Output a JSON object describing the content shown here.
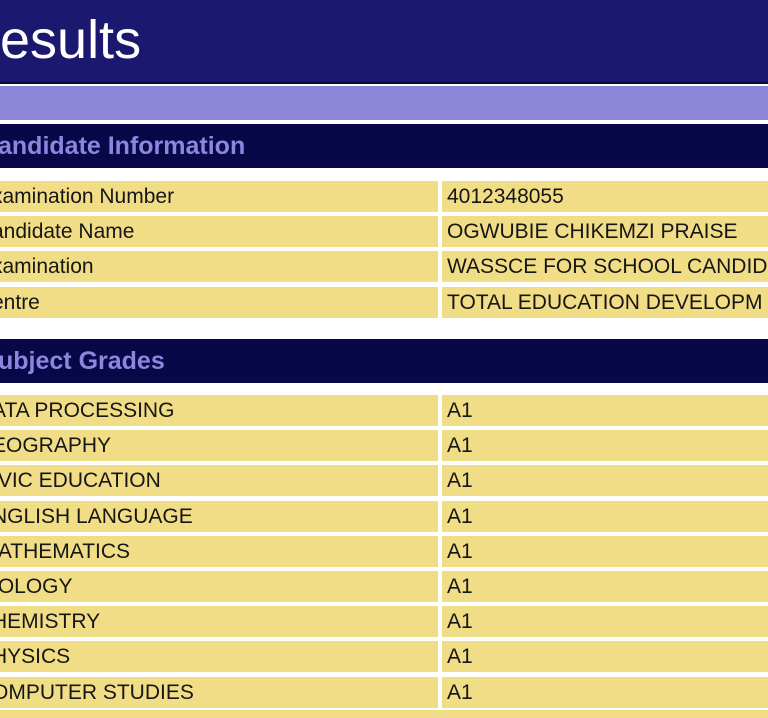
{
  "header": {
    "title": "esults"
  },
  "candidate_section": {
    "title": "andidate Information",
    "rows": [
      {
        "label": "xamination Number",
        "value": "4012348055"
      },
      {
        "label": "andidate Name",
        "value": "OGWUBIE CHIKEMZI PRAISE"
      },
      {
        "label": "xamination",
        "value": "WASSCE FOR SCHOOL CANDID"
      },
      {
        "label": "entre",
        "value": "TOTAL EDUCATION DEVELOPM"
      }
    ]
  },
  "grades_section": {
    "title": "ubject Grades",
    "rows": [
      {
        "subject": "ATA PROCESSING",
        "grade": "A1"
      },
      {
        "subject": "EOGRAPHY",
        "grade": "A1"
      },
      {
        "subject": "IVIC EDUCATION",
        "grade": "A1"
      },
      {
        "subject": "NGLISH LANGUAGE",
        "grade": "A1"
      },
      {
        "subject": "IATHEMATICS",
        "grade": "A1"
      },
      {
        "subject": "IOLOGY",
        "grade": "A1"
      },
      {
        "subject": "HEMISTRY",
        "grade": "A1"
      },
      {
        "subject": "HYSICS",
        "grade": "A1"
      },
      {
        "subject": "OMPUTER STUDIES",
        "grade": "A1"
      }
    ]
  },
  "colors": {
    "title_bar": "#1b1870",
    "lavender_band": "#8e86d8",
    "section_header_bg": "#080848",
    "section_header_text": "#8d86de",
    "row_bg": "#f1dd86",
    "row_text": "#161616"
  }
}
